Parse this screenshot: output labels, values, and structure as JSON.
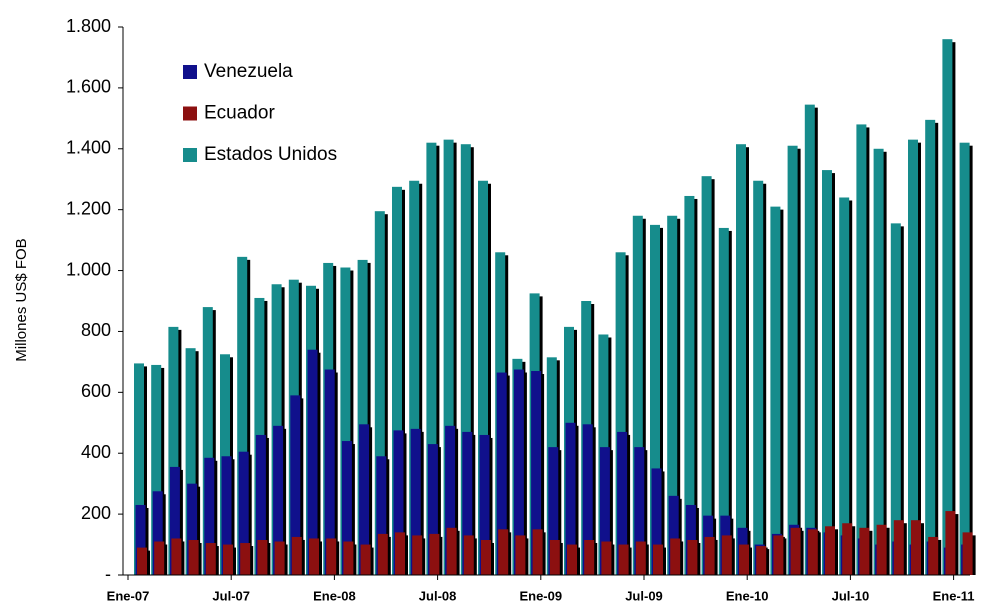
{
  "chart_data": {
    "type": "bar",
    "y_label": "Millones US$ FOB",
    "categories": [
      "Ene-07",
      null,
      null,
      null,
      null,
      null,
      "Jul-07",
      null,
      null,
      null,
      null,
      null,
      "Ene-08",
      null,
      null,
      null,
      null,
      null,
      "Jul-08",
      null,
      null,
      null,
      null,
      null,
      "Ene-09",
      null,
      null,
      null,
      null,
      null,
      "Jul-09",
      null,
      null,
      null,
      null,
      null,
      "Ene-10",
      null,
      null,
      null,
      null,
      null,
      "Jul-10",
      null,
      null,
      null,
      null,
      null,
      "Ene-11"
    ],
    "series": [
      {
        "name": "Venezuela",
        "color": "#10108c",
        "values": [
          230,
          275,
          355,
          300,
          385,
          390,
          405,
          460,
          490,
          590,
          740,
          675,
          440,
          495,
          390,
          475,
          480,
          430,
          490,
          470,
          460,
          665,
          675,
          670,
          420,
          500,
          495,
          420,
          470,
          420,
          350,
          260,
          230,
          195,
          195,
          155,
          100,
          135,
          165,
          155,
          140,
          130,
          120,
          100,
          110,
          100,
          110,
          90,
          100
        ]
      },
      {
        "name": "Ecuador",
        "color": "#8c1010",
        "values": [
          90,
          110,
          120,
          115,
          105,
          100,
          105,
          115,
          110,
          125,
          120,
          120,
          110,
          100,
          135,
          140,
          130,
          135,
          155,
          130,
          115,
          150,
          130,
          150,
          115,
          100,
          115,
          110,
          100,
          110,
          100,
          120,
          115,
          125,
          130,
          100,
          95,
          130,
          155,
          150,
          160,
          170,
          155,
          165,
          180,
          180,
          125,
          210,
          140
        ]
      },
      {
        "name": "Estados Unidos",
        "color": "#168c8c",
        "values": [
          695,
          690,
          815,
          745,
          880,
          725,
          1045,
          910,
          955,
          970,
          950,
          1025,
          1010,
          1035,
          1195,
          1275,
          1295,
          1420,
          1430,
          1415,
          1295,
          1060,
          710,
          925,
          715,
          815,
          900,
          790,
          1060,
          1180,
          1150,
          1180,
          1245,
          1310,
          1140,
          1415,
          1295,
          1210,
          1410,
          1545,
          1330,
          1240,
          1480,
          1400,
          1155,
          1430,
          1495,
          1760,
          1420
        ]
      }
    ],
    "ylim": [
      0,
      1800
    ],
    "yticks": [
      {
        "value": 0,
        "label": "-"
      },
      200,
      400,
      600,
      800,
      {
        "value": 1000,
        "label": "1.000"
      },
      {
        "value": 1200,
        "label": "1.200"
      },
      {
        "value": 1400,
        "label": "1.400"
      },
      {
        "value": 1600,
        "label": "1.600"
      },
      {
        "value": 1800,
        "label": "1.800"
      }
    ],
    "legend": "top-left",
    "grid": false
  }
}
